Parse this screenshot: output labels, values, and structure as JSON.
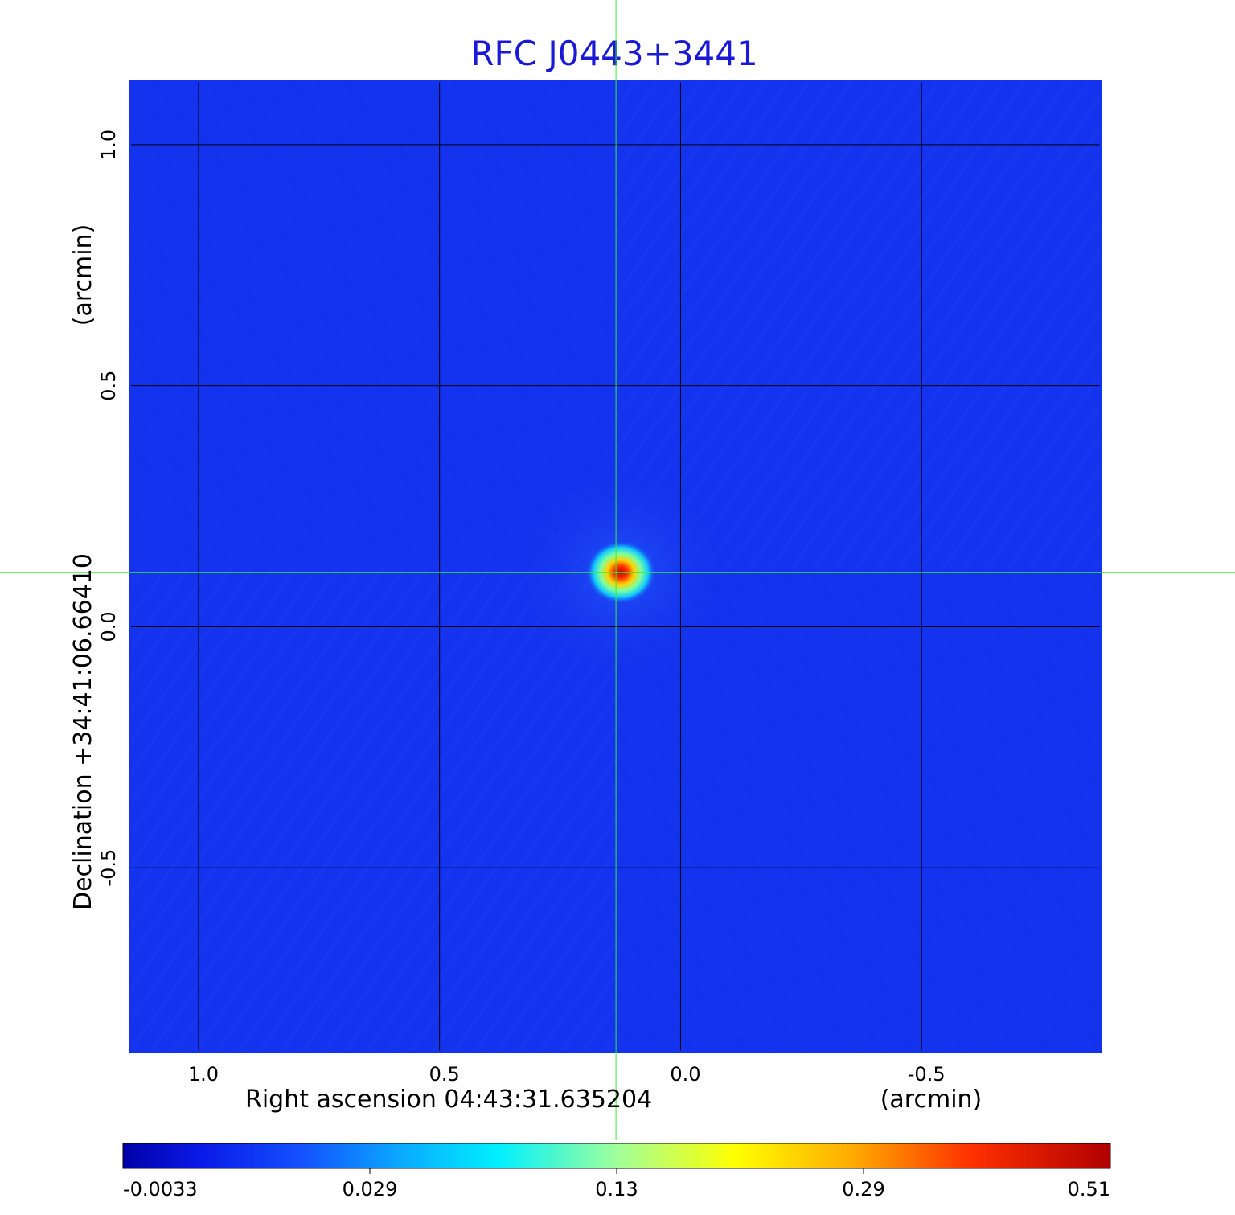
{
  "chart_data": {
    "type": "heatmap",
    "title": "RFC J0443+3441",
    "title_color": "#1a1ad6",
    "xlabel": "Right ascension  04:43:31.635204",
    "xlabel_unit": "(arcmin)",
    "ylabel": "Declination  +34:41:06.66410",
    "ylabel_unit": "(arcmin)",
    "xlim": [
      1.14,
      -0.87
    ],
    "ylim": [
      -0.88,
      1.13
    ],
    "x_ticks": [
      {
        "value": 1.0,
        "label": "1.0"
      },
      {
        "value": 0.5,
        "label": "0.5"
      },
      {
        "value": 0.0,
        "label": "0.0"
      },
      {
        "value": -0.5,
        "label": "-0.5"
      }
    ],
    "y_ticks": [
      {
        "value": 1.0,
        "label": "1.0"
      },
      {
        "value": 0.5,
        "label": "0.5"
      },
      {
        "value": 0.0,
        "label": "0.0"
      },
      {
        "value": -0.5,
        "label": "-0.5"
      }
    ],
    "grid": true,
    "crosshair": {
      "x": 0.134,
      "y": 0.113,
      "color": "#33ee33"
    },
    "source_peak": {
      "x": 0.124,
      "y": 0.113,
      "value": 0.51
    },
    "colorbar": {
      "ticks": [
        {
          "value": -0.0033,
          "label": "-0.0033"
        },
        {
          "value": 0.029,
          "label": "0.029"
        },
        {
          "value": 0.13,
          "label": "0.13"
        },
        {
          "value": 0.29,
          "label": "0.29"
        },
        {
          "value": 0.51,
          "label": "0.51"
        }
      ],
      "colormap": "jet",
      "background_color": "#1433ee"
    }
  }
}
